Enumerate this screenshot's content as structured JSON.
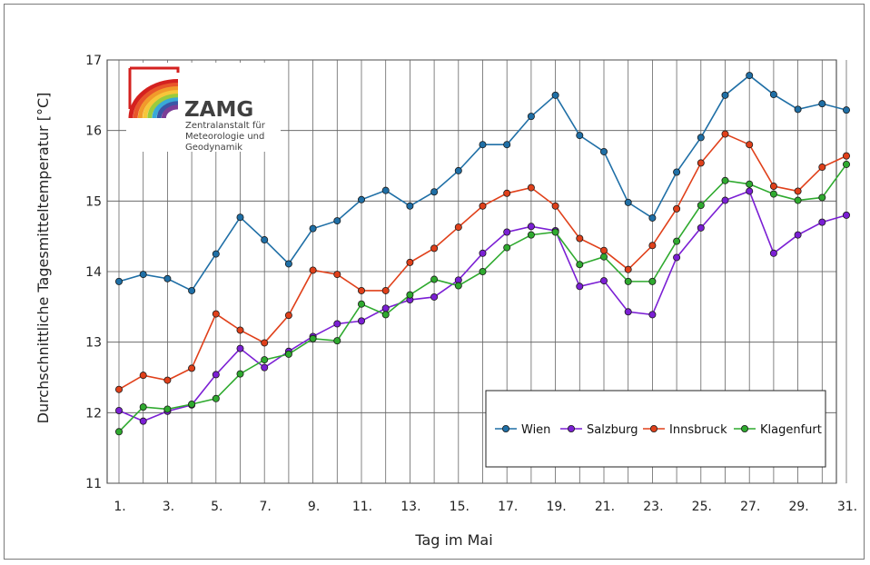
{
  "chart_data": {
    "type": "line",
    "title": "",
    "xlabel": "Tag im Mai",
    "ylabel": "Durchschnittliche Tagesmitteltemperatur [°C]",
    "x": [
      1,
      2,
      3,
      4,
      5,
      6,
      7,
      8,
      9,
      10,
      11,
      12,
      13,
      14,
      15,
      16,
      17,
      18,
      19,
      20,
      21,
      22,
      23,
      24,
      25,
      26,
      27,
      28,
      29,
      30,
      31
    ],
    "xticks": [
      1,
      3,
      5,
      7,
      9,
      11,
      13,
      15,
      17,
      19,
      21,
      23,
      25,
      27,
      29,
      31
    ],
    "xtick_labels": [
      "1.",
      "3.",
      "5.",
      "7.",
      "9.",
      "11.",
      "13.",
      "15.",
      "17.",
      "19.",
      "21.",
      "23.",
      "25.",
      "27.",
      "29.",
      "31."
    ],
    "ylim": [
      11,
      17
    ],
    "yticks": [
      11,
      12,
      13,
      14,
      15,
      16,
      17
    ],
    "grid": true,
    "legend_position": "bottom-right",
    "series": [
      {
        "name": "Wien",
        "color": "#1f6fa6",
        "values": [
          13.86,
          13.96,
          13.9,
          13.73,
          14.25,
          14.77,
          14.45,
          14.11,
          14.61,
          14.72,
          15.02,
          15.15,
          14.93,
          15.13,
          15.43,
          15.8,
          15.8,
          16.2,
          16.5,
          15.93,
          15.7,
          14.98,
          14.76,
          15.41,
          15.9,
          16.5,
          16.78,
          16.51,
          16.3,
          16.38,
          16.29
        ]
      },
      {
        "name": "Salzburg",
        "color": "#7b1fd4",
        "values": [
          12.03,
          11.88,
          12.02,
          12.11,
          12.54,
          12.91,
          12.64,
          12.87,
          13.08,
          13.26,
          13.3,
          13.48,
          13.6,
          13.64,
          13.88,
          14.26,
          14.56,
          14.64,
          14.58,
          13.79,
          13.87,
          13.43,
          13.39,
          14.2,
          14.62,
          15.01,
          15.14,
          14.26,
          14.52,
          14.7,
          14.8
        ]
      },
      {
        "name": "Innsbruck",
        "color": "#e0401a",
        "values": [
          12.33,
          12.53,
          12.46,
          12.63,
          13.4,
          13.17,
          12.99,
          13.38,
          14.02,
          13.96,
          13.73,
          13.73,
          14.13,
          14.33,
          14.63,
          14.93,
          15.11,
          15.19,
          14.93,
          14.47,
          14.3,
          14.03,
          14.37,
          14.89,
          15.54,
          15.95,
          15.8,
          15.21,
          15.14,
          15.48,
          15.64
        ]
      },
      {
        "name": "Klagenfurt",
        "color": "#2faa2f",
        "values": [
          11.73,
          12.08,
          12.05,
          12.12,
          12.2,
          12.55,
          12.75,
          12.83,
          13.05,
          13.02,
          13.54,
          13.39,
          13.67,
          13.89,
          13.8,
          14.0,
          14.34,
          14.52,
          14.56,
          14.1,
          14.21,
          13.86,
          13.86,
          14.43,
          14.94,
          15.29,
          15.24,
          15.1,
          15.01,
          15.05,
          15.52
        ]
      }
    ]
  },
  "logo": {
    "name": "ZAMG",
    "subtitle_lines": [
      "Zentralanstalt für",
      "Meteorologie und",
      "Geodynamik"
    ]
  }
}
